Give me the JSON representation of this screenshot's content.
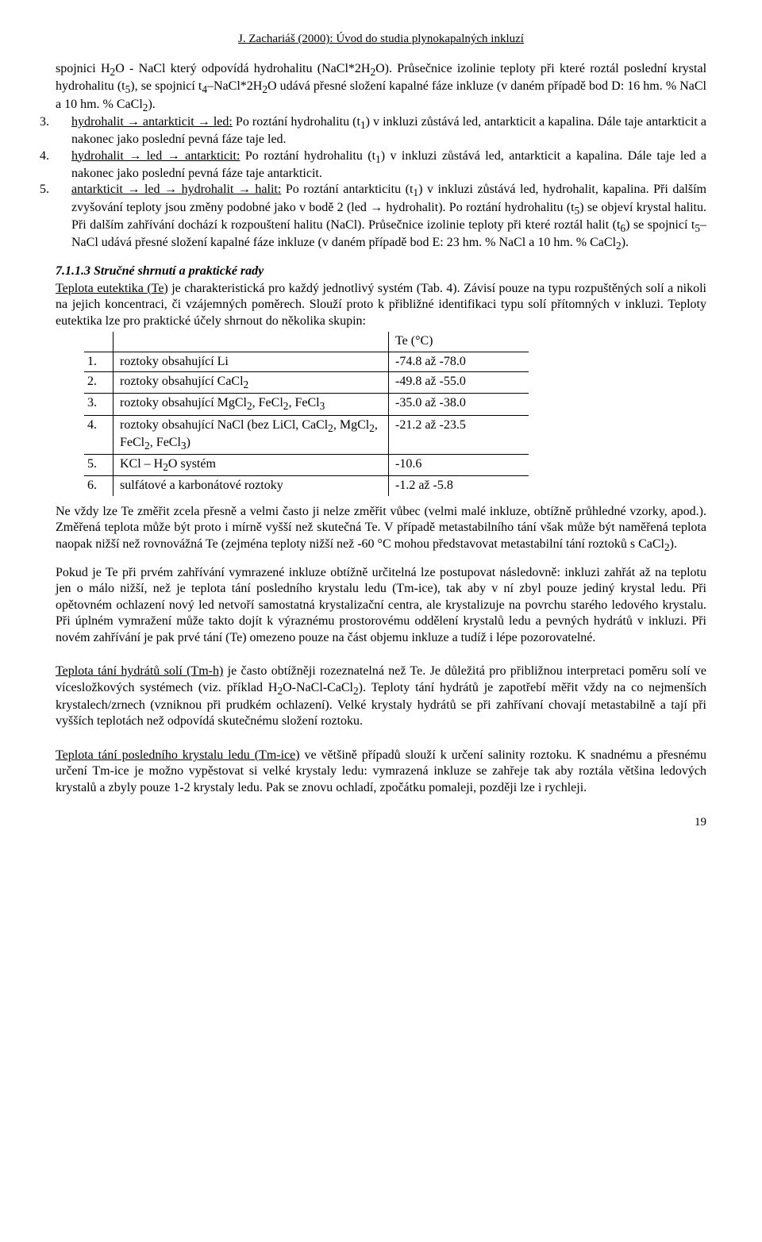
{
  "header": "J. Zachariáš (2000): Úvod do studia plynokapalných inkluzí",
  "intro_parts": [
    "spojnici H<sub>2</sub>O - NaCl který odpovídá hydrohalitu (NaCl*2H<sub>2</sub>O). Průsečnice izolinie teploty při které roztál poslední krystal hydrohalitu (t<sub>5</sub>), se spojnicí t<sub>4</sub>–NaCl*2H<sub>2</sub>O udává přesné složení kapalné fáze inkluze (v daném případě bod D: 16 hm. % NaCl a 10 hm. % CaCl<sub>2</sub>).",
    "<span class=\"listnum\">3.</span><span class=\"u\">hydrohalit → antarkticit → led:</span> Po roztání hydrohalitu (t<sub>1</sub>) v inkluzi zůstává led, antarkticit a kapalina. Dále taje antarkticit a nakonec jako poslední pevná fáze taje led.",
    "<span class=\"listnum\">4.</span><span class=\"u\">hydrohalit → led → antarkticit:</span> Po roztání hydrohalitu (t<sub>1</sub>) v inkluzi zůstává led, antarkticit a kapalina. Dále taje led a nakonec jako poslední pevná fáze taje antarkticit.",
    "<span class=\"listnum\">5.</span><span class=\"u\">antarkticit → led → hydrohalit → halit:</span> Po roztání antarkticitu (t<sub>1</sub>) v inkluzi zůstává led, hydrohalit, kapalina. Při dalším zvyšování teploty jsou změny podobné jako v bodě 2 (led → hydrohalit). Po roztání hydrohalitu (t<sub>5</sub>) se objeví krystal halitu. Při dalším zahřívání dochází k rozpouštení halitu (NaCl). Průsečnice izolinie teploty při které roztál halit (t<sub>6</sub>) se spojnicí t<sub>5</sub>–NaCl udává přesné složení kapalné fáze inkluze (v daném případě bod E: 23 hm. % NaCl a 10 hm. % CaCl<sub>2</sub>)."
  ],
  "section_title": "7.1.1.3 Stručné shrnutí a praktické rady",
  "para_eutectic": "<span class=\"u\">Teplota eutektika (Te)</span> je charakteristická pro každý jednotlivý systém (Tab. 4). Závisí pouze na typu rozpuštěných solí a nikoli na jejich koncentraci, či vzájemných poměrech. Slouží proto k přibližné identifikaci typu solí přítomných v inkluzi. Teploty eutektika lze pro praktické účely shrnout do několika skupin:",
  "table": {
    "header": [
      "",
      "",
      "Te (°C)"
    ],
    "rows": [
      [
        "1.",
        "roztoky obsahující Li",
        "-74.8 až -78.0"
      ],
      [
        "2.",
        "roztoky obsahující CaCl<sub>2</sub>",
        "-49.8 až -55.0"
      ],
      [
        "3.",
        "roztoky obsahující MgCl<sub>2</sub>, FeCl<sub>2</sub>, FeCl<sub>3</sub>",
        "-35.0 až -38.0"
      ],
      [
        "4.",
        "roztoky obsahující NaCl (bez LiCl, CaCl<sub>2</sub>, MgCl<sub>2</sub>, FeCl<sub>2</sub>, FeCl<sub>3</sub>)",
        "-21.2 až -23.5"
      ],
      [
        "5.",
        "KCl – H<sub>2</sub>O systém",
        "-10.6"
      ],
      [
        "6.",
        "sulfátové a karbonátové roztoky",
        "-1.2 až -5.8"
      ]
    ]
  },
  "para_te_note": "Ne vždy lze Te změřit zcela přesně a velmi často ji nelze změřit vůbec (velmi malé inkluze, obtížně průhledné vzorky, apod.). Změřená teplota může být proto i mírně vyšší než skutečná Te. V případě metastabilního tání však může být naměřená teplota naopak nižší než rovnovážná Te (zejména teploty nižší než  -60 °C mohou představovat metastabilní tání roztoků s CaCl<sub>2</sub>).",
  "para_te_proc": "Pokud je Te při prvém zahřívání vymrazené inkluze obtížně určitelná lze postupovat následovně: inkluzi zahřát až na teplotu jen o málo nižší, než je teplota tání posledního krystalu ledu (Tm-ice), tak aby v ní zbyl pouze jediný krystal ledu. Při opětovném ochlazení  nový led netvoří samostatná krystalizační centra, ale krystalizuje na povrchu starého ledového krystalu. Při úplném vymražení může takto dojít k výraznému prostorovému oddělení krystalů ledu a pevných hydrátů v inkluzi. Při novém zahřívání je pak prvé tání (Te) omezeno pouze na část objemu inkluze a tudíž i lépe pozorovatelné.",
  "para_tmh": "<span class=\"u\">Teplota tání hydrátů solí (Tm-h)</span> je často obtížněji rozeznatelná než Te. Je důležitá pro přibližnou interpretaci poměru solí ve vícesložkových systémech (viz. příklad H<sub>2</sub>O-NaCl-CaCl<sub>2</sub>). Teploty tání hydrátů je zapotřebí měřit vždy na co nejmenších krystalech/zrnech (vzniknou při prudkém ochlazení). Velké krystaly hydrátů se při zahřívaní chovají metastabilně a tají při vyšších teplotách než odpovídá skutečnému složení roztoku.",
  "para_tmice": "<span class=\"u\">Teplota tání posledního krystalu ledu (Tm-ice)</span> ve většině případů slouží k určení salinity roztoku. K snadnému a přesnému určení Tm-ice je možno vypěstovat si velké krystaly ledu: vymrazená inkluze se zahřeje tak aby roztála většina ledových krystalů a zbyly pouze 1-2 krystaly ledu. Pak se znovu ochladí, zpočátku pomaleji, později lze i rychleji.",
  "pagenum": "19"
}
